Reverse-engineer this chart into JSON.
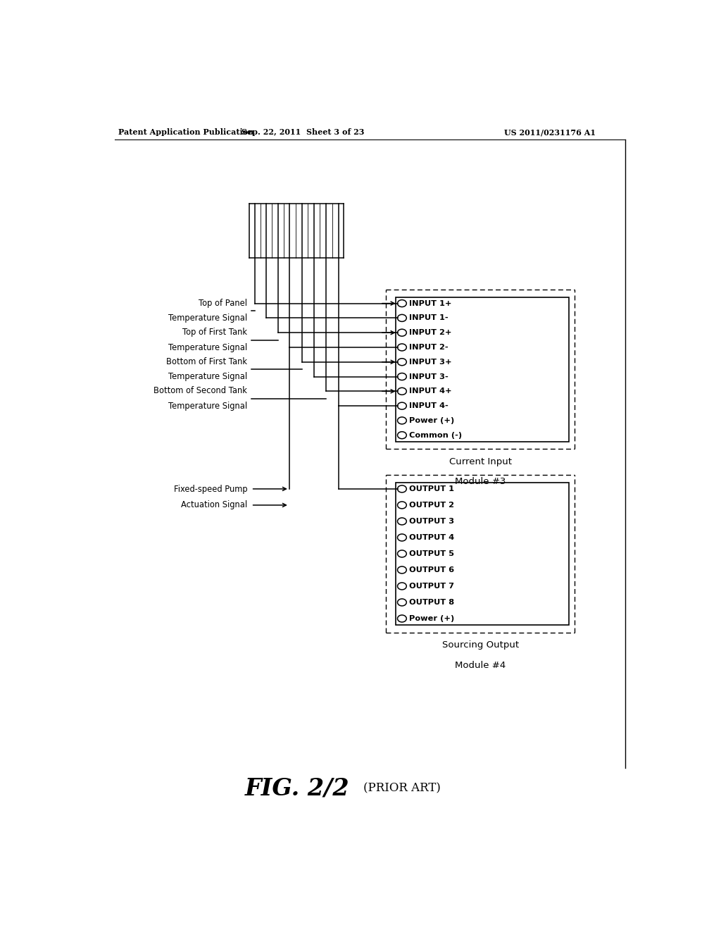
{
  "bg_color": "#ffffff",
  "header_left": "Patent Application Publication",
  "header_mid": "Sep. 22, 2011  Sheet 3 of 23",
  "header_right": "US 2011/0231176 A1",
  "footer_fig": "FIG. 2/2",
  "footer_sub": "(PRIOR ART)",
  "input_labels": [
    "INPUT 1+",
    "INPUT 1-",
    "INPUT 2+",
    "INPUT 2-",
    "INPUT 3+",
    "INPUT 3-",
    "INPUT 4+",
    "INPUT 4-",
    "Power (+)",
    "Common (-)"
  ],
  "input_module_label_line1": "Current Input",
  "input_module_label_line2": "Module #3",
  "output_labels": [
    "OUTPUT 1",
    "OUTPUT 2",
    "OUTPUT 3",
    "OUTPUT 4",
    "OUTPUT 5",
    "OUTPUT 6",
    "OUTPUT 7",
    "OUTPUT 8",
    "Power (+)"
  ],
  "output_module_label_line1": "Sourcing Output",
  "output_module_label_line2": "Module #4",
  "signal_groups": [
    [
      "Top of Panel",
      "Temperature Signal"
    ],
    [
      "Top of First Tank",
      "Temperature Signal"
    ],
    [
      "Bottom of First Tank",
      "Temperature Signal"
    ],
    [
      "Bottom of Second Tank",
      "Temperature Signal"
    ]
  ],
  "pump_labels": [
    "Fixed-speed Pump",
    "Actuation Signal"
  ]
}
